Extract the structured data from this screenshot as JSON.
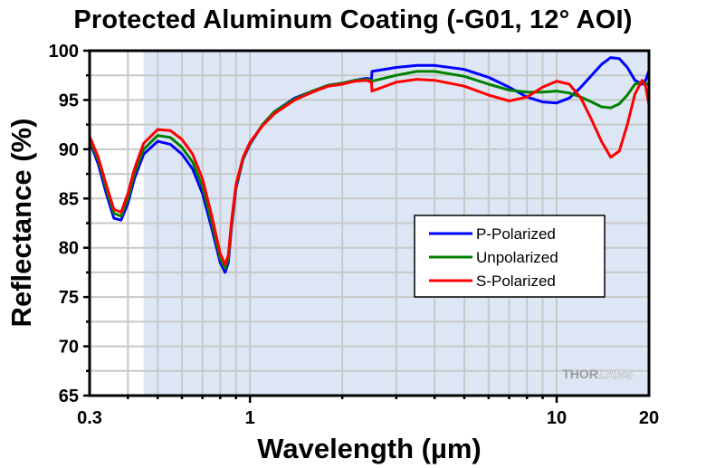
{
  "chart_data": {
    "type": "line",
    "title": "Protected Aluminum Coating (-G01, 12° AOI)",
    "xlabel": "Wavelength (µm)",
    "ylabel": "Reflectance (%)",
    "xscale": "log",
    "xlim": [
      0.3,
      20
    ],
    "ylim": [
      65,
      100
    ],
    "x_ticks": [
      0.3,
      1,
      10,
      20
    ],
    "x_tick_labels": [
      "0.3",
      "1",
      "10",
      "20"
    ],
    "y_ticks": [
      65,
      70,
      75,
      80,
      85,
      90,
      95,
      100
    ],
    "y_tick_labels": [
      "65",
      "70",
      "75",
      "80",
      "85",
      "90",
      "95",
      "100"
    ],
    "grid": true,
    "shaded_region": {
      "from": 0.45,
      "to": 20,
      "color": "#dce6f5"
    },
    "legend": {
      "placement": "center-right",
      "entries": [
        "P-Polarized",
        "Unpolarized",
        "S-Polarized"
      ]
    },
    "watermark": {
      "bold": "THOR",
      "light": "LABS"
    },
    "series": [
      {
        "name": "P-Polarized",
        "color": "#0000ff",
        "x": [
          0.3,
          0.32,
          0.34,
          0.36,
          0.38,
          0.4,
          0.42,
          0.45,
          0.5,
          0.55,
          0.6,
          0.65,
          0.7,
          0.75,
          0.8,
          0.83,
          0.85,
          0.87,
          0.9,
          0.95,
          1.0,
          1.1,
          1.2,
          1.4,
          1.6,
          1.8,
          2.0,
          2.2,
          2.4,
          2.49,
          2.5,
          3.0,
          3.5,
          4.0,
          5.0,
          6.0,
          7.0,
          8.0,
          9.0,
          10.0,
          11.0,
          12.0,
          13.0,
          14.0,
          15.0,
          16.0,
          17.0,
          18.0,
          19.0,
          19.5,
          20.0
        ],
        "values": [
          90.8,
          88.5,
          85.5,
          83.0,
          82.8,
          84.5,
          87.0,
          89.5,
          90.8,
          90.5,
          89.5,
          88.0,
          85.5,
          82.0,
          78.5,
          77.5,
          78.5,
          82.0,
          86.0,
          89.0,
          90.5,
          92.5,
          93.8,
          95.2,
          95.9,
          96.5,
          96.7,
          97.0,
          97.2,
          97.1,
          97.9,
          98.3,
          98.5,
          98.5,
          98.1,
          97.3,
          96.3,
          95.3,
          94.8,
          94.7,
          95.2,
          96.3,
          97.5,
          98.6,
          99.3,
          99.2,
          98.3,
          97.0,
          96.6,
          97.0,
          98.0
        ]
      },
      {
        "name": "Unpolarized",
        "color": "#008000",
        "x": [
          0.3,
          0.32,
          0.34,
          0.36,
          0.38,
          0.4,
          0.42,
          0.45,
          0.5,
          0.55,
          0.6,
          0.65,
          0.7,
          0.75,
          0.8,
          0.83,
          0.85,
          0.87,
          0.9,
          0.95,
          1.0,
          1.1,
          1.2,
          1.4,
          1.6,
          1.8,
          2.0,
          2.2,
          2.4,
          2.49,
          2.5,
          3.0,
          3.5,
          4.0,
          5.0,
          6.0,
          7.0,
          8.0,
          9.0,
          10.0,
          11.0,
          12.0,
          13.0,
          14.0,
          15.0,
          16.0,
          17.0,
          18.0,
          19.0,
          19.5,
          20.0
        ],
        "values": [
          91.0,
          88.9,
          86.0,
          83.5,
          83.2,
          85.0,
          87.5,
          90.0,
          91.4,
          91.2,
          90.2,
          88.7,
          86.2,
          82.6,
          78.9,
          77.9,
          78.9,
          82.3,
          86.2,
          89.1,
          90.6,
          92.5,
          93.8,
          95.1,
          95.9,
          96.5,
          96.7,
          97.0,
          97.1,
          97.0,
          96.9,
          97.5,
          97.9,
          97.9,
          97.4,
          96.6,
          96.0,
          95.8,
          95.8,
          95.9,
          95.7,
          95.3,
          94.8,
          94.3,
          94.2,
          94.6,
          95.5,
          96.6,
          96.8,
          96.7,
          96.5
        ]
      },
      {
        "name": "S-Polarized",
        "color": "#ff0000",
        "x": [
          0.3,
          0.32,
          0.34,
          0.36,
          0.38,
          0.4,
          0.42,
          0.45,
          0.5,
          0.55,
          0.6,
          0.65,
          0.7,
          0.75,
          0.8,
          0.83,
          0.85,
          0.87,
          0.9,
          0.95,
          1.0,
          1.1,
          1.2,
          1.4,
          1.6,
          1.8,
          2.0,
          2.2,
          2.4,
          2.49,
          2.5,
          3.0,
          3.5,
          4.0,
          5.0,
          6.0,
          7.0,
          8.0,
          9.0,
          10.0,
          11.0,
          12.0,
          13.0,
          14.0,
          15.0,
          16.0,
          17.0,
          18.0,
          19.0,
          19.5,
          20.0
        ],
        "values": [
          91.3,
          89.2,
          86.4,
          83.9,
          83.6,
          85.5,
          88.0,
          90.6,
          92.0,
          91.9,
          91.0,
          89.5,
          87.0,
          83.3,
          79.4,
          78.3,
          79.3,
          82.6,
          86.4,
          89.2,
          90.7,
          92.4,
          93.6,
          95.0,
          95.8,
          96.4,
          96.6,
          96.9,
          97.0,
          96.8,
          95.9,
          96.8,
          97.1,
          97.0,
          96.4,
          95.5,
          94.9,
          95.3,
          96.3,
          96.9,
          96.6,
          95.2,
          93.0,
          90.8,
          89.2,
          89.8,
          92.5,
          95.6,
          97.0,
          96.4,
          94.5
        ]
      }
    ]
  }
}
